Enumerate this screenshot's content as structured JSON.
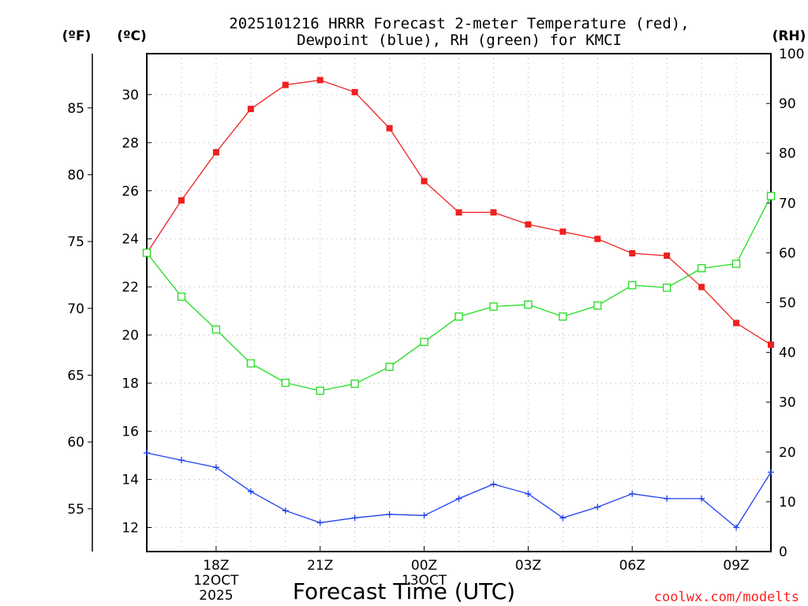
{
  "chart_data": {
    "type": "line",
    "title_line1": "2025101216 HRRR Forecast 2-meter Temperature (red),",
    "title_line2": "Dewpoint (blue), RH (green) for KMCI",
    "xlabel": "Forecast Time (UTC)",
    "credit": "coolwx.com/modelts",
    "units": {
      "fahrenheit": "(ºF)",
      "celsius": "(ºC)",
      "rh": "(RH)"
    },
    "x_hours": [
      16,
      17,
      18,
      19,
      20,
      21,
      22,
      23,
      24,
      25,
      26,
      27,
      28,
      29,
      30,
      31,
      32,
      33,
      34
    ],
    "xlim": [
      16,
      34
    ],
    "x_ticks": [
      {
        "hour": 18,
        "label": "18Z",
        "date": "12OCT",
        "year": "2025"
      },
      {
        "hour": 21,
        "label": "21Z",
        "date": "",
        "year": ""
      },
      {
        "hour": 24,
        "label": "00Z",
        "date": "13OCT",
        "year": ""
      },
      {
        "hour": 27,
        "label": "03Z",
        "date": "",
        "year": ""
      },
      {
        "hour": 30,
        "label": "06Z",
        "date": "",
        "year": ""
      },
      {
        "hour": 33,
        "label": "09Z",
        "date": "",
        "year": ""
      }
    ],
    "celsius_axis": {
      "ylim": [
        11,
        31.7
      ],
      "ticks": [
        12,
        14,
        16,
        18,
        20,
        22,
        24,
        26,
        28,
        30
      ]
    },
    "fahrenheit_axis": {
      "ticks": [
        55,
        60,
        65,
        70,
        75,
        80,
        85
      ]
    },
    "rh_axis": {
      "ylim": [
        0,
        100
      ],
      "ticks": [
        0,
        10,
        20,
        30,
        40,
        50,
        60,
        70,
        80,
        90,
        100
      ]
    },
    "series": [
      {
        "name": "Temperature",
        "units": "C",
        "color": "#ee2020",
        "marker": "filled-square",
        "values": [
          23.4,
          25.6,
          27.6,
          29.4,
          30.4,
          30.6,
          30.1,
          28.6,
          26.4,
          25.1,
          25.1,
          24.6,
          24.3,
          24.0,
          23.4,
          23.3,
          22.0,
          20.5,
          19.6
        ]
      },
      {
        "name": "Dewpoint",
        "units": "C",
        "color": "#2040ee",
        "marker": "plus",
        "values": [
          15.1,
          14.8,
          14.5,
          13.5,
          12.7,
          12.2,
          12.4,
          12.55,
          12.5,
          13.2,
          13.8,
          13.4,
          12.4,
          12.85,
          13.4,
          13.2,
          13.2,
          12.0,
          14.3
        ]
      },
      {
        "name": "RH",
        "units": "%",
        "color": "#20dd20",
        "marker": "open-square",
        "values": [
          60,
          51.2,
          44.6,
          37.8,
          33.9,
          32.3,
          33.7,
          37.1,
          42.1,
          47.2,
          49.2,
          49.6,
          47.2,
          49.4,
          53.5,
          53,
          56.9,
          57.8,
          71.4
        ]
      }
    ]
  }
}
